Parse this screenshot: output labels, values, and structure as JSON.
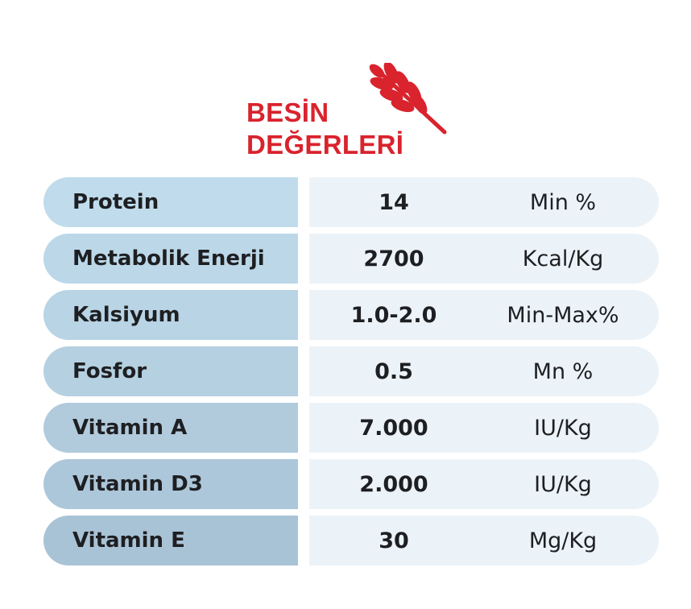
{
  "title": {
    "line1": "BESİN",
    "line2": "DEĞERLERİ"
  },
  "colors": {
    "accent": "#d9232d",
    "name_cell_light": "#c0dcec",
    "name_cell_dark": "#a9c3d6",
    "value_cell": "#ecf3f8",
    "text": "#1e1f22"
  },
  "icons": {
    "title_icon": "wheat-icon"
  },
  "rows": [
    {
      "name": "Protein",
      "value": "14",
      "unit": "Min %"
    },
    {
      "name": "Metabolik Enerji",
      "value": "2700",
      "unit": "Kcal/Kg"
    },
    {
      "name": "Kalsiyum",
      "value": "1.0-2.0",
      "unit": "Min-Max%"
    },
    {
      "name": "Fosfor",
      "value": "0.5",
      "unit": "Mn %"
    },
    {
      "name": "Vitamin A",
      "value": "7.000",
      "unit": "IU/Kg"
    },
    {
      "name": "Vitamin D3",
      "value": "2.000",
      "unit": "IU/Kg"
    },
    {
      "name": "Vitamin E",
      "value": "30",
      "unit": "Mg/Kg"
    }
  ]
}
